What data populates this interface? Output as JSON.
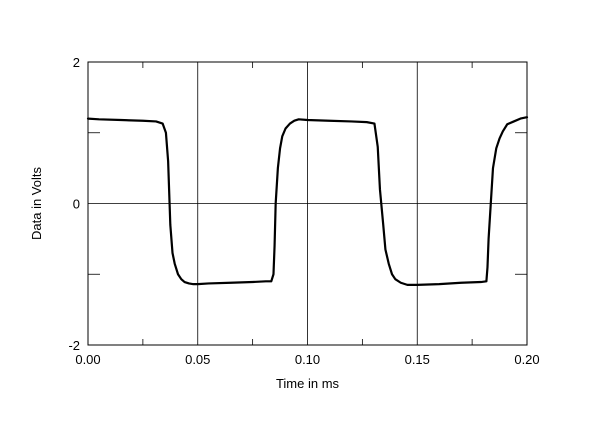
{
  "chart_data": {
    "type": "line",
    "title": "",
    "xlabel": "Time in ms",
    "ylabel": "Data in Volts",
    "xlim": [
      0.0,
      0.2
    ],
    "ylim": [
      -2,
      2
    ],
    "x_ticks": [
      0.0,
      0.05,
      0.1,
      0.15,
      0.2
    ],
    "x_tick_labels": [
      "0.00",
      "0.05",
      "0.10",
      "0.15",
      "0.20"
    ],
    "y_tick_labels_shown": [
      {
        "value": 2,
        "label": "2"
      },
      {
        "value": 0,
        "label": "0"
      },
      {
        "value": -2,
        "label": "-2"
      }
    ],
    "y_minor_ticks": [
      1,
      -1
    ],
    "grid": true,
    "legend": "none",
    "series": [
      {
        "color": "#000000",
        "x": [
          0.0,
          0.005,
          0.015,
          0.025,
          0.031,
          0.034,
          0.0355,
          0.0365,
          0.0375,
          0.0385,
          0.0395,
          0.041,
          0.0425,
          0.044,
          0.046,
          0.048,
          0.05,
          0.055,
          0.065,
          0.075,
          0.081,
          0.0835,
          0.0845,
          0.085,
          0.0855,
          0.0865,
          0.0875,
          0.0885,
          0.09,
          0.092,
          0.094,
          0.096,
          0.1,
          0.11,
          0.12,
          0.127,
          0.1305,
          0.132,
          0.133,
          0.1345,
          0.1355,
          0.137,
          0.1385,
          0.14,
          0.1425,
          0.1455,
          0.15,
          0.16,
          0.17,
          0.179,
          0.1815,
          0.182,
          0.1825,
          0.1835,
          0.1845,
          0.186,
          0.1875,
          0.189,
          0.191,
          0.194,
          0.197,
          0.2
        ],
        "y": [
          1.2,
          1.19,
          1.18,
          1.17,
          1.16,
          1.13,
          1.0,
          0.6,
          -0.3,
          -0.7,
          -0.85,
          -1.0,
          -1.07,
          -1.11,
          -1.13,
          -1.14,
          -1.14,
          -1.13,
          -1.12,
          -1.11,
          -1.1,
          -1.1,
          -1.0,
          -0.6,
          0.0,
          0.5,
          0.78,
          0.95,
          1.06,
          1.13,
          1.17,
          1.19,
          1.18,
          1.17,
          1.16,
          1.15,
          1.13,
          0.8,
          0.2,
          -0.3,
          -0.65,
          -0.85,
          -1.0,
          -1.07,
          -1.12,
          -1.15,
          -1.15,
          -1.14,
          -1.12,
          -1.11,
          -1.1,
          -0.9,
          -0.5,
          0.0,
          0.5,
          0.78,
          0.92,
          1.02,
          1.12,
          1.16,
          1.2,
          1.22
        ]
      }
    ]
  }
}
